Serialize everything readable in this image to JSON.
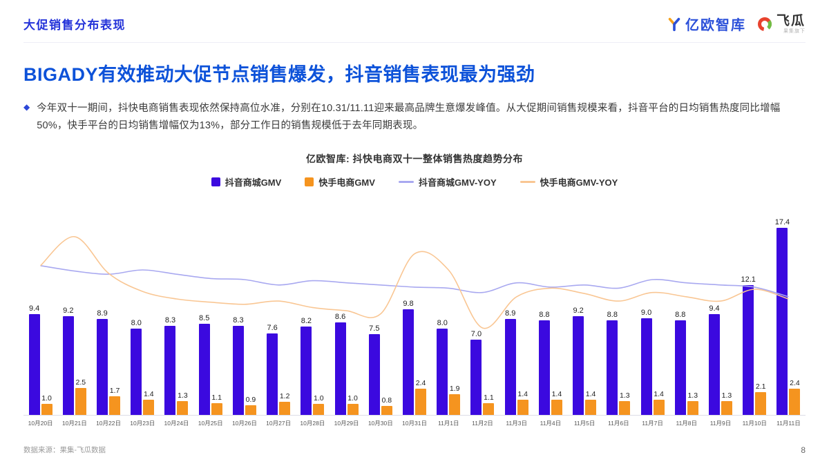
{
  "header": {
    "section_title": "大促销售分布表现",
    "logo_eo": "亿欧智库",
    "logo_feigua": "飞瓜",
    "logo_feigua_sub": "果集旗下"
  },
  "main_title": "BIGADY有效推动大促节点销售爆发，抖音销售表现最为强劲",
  "bullet": {
    "marker": "◆",
    "text": "今年双十一期间，抖快电商销售表现依然保持高位水准，分别在10.31/11.11迎来最高品牌生意爆发峰值。从大促期间销售规模来看，抖音平台的日均销售热度同比增幅50%，快手平台的日均销售增幅仅为13%，部分工作日的销售规模低于去年同期表现。",
    "accent_color": "#2d47d8"
  },
  "chart_data": {
    "type": "bar",
    "title": "亿欧智库: 抖快电商双十一整体销售热度趋势分布",
    "categories": [
      "10月20日",
      "10月21日",
      "10月22日",
      "10月23日",
      "10月24日",
      "10月25日",
      "10月26日",
      "10月27日",
      "10月28日",
      "10月29日",
      "10月30日",
      "10月31日",
      "11月1日",
      "11月2日",
      "11月3日",
      "11月4日",
      "11月5日",
      "11月6日",
      "11月7日",
      "11月8日",
      "11月9日",
      "11月10日",
      "11月11日"
    ],
    "series": [
      {
        "name": "抖音商城GMV",
        "type": "bar",
        "color": "#3b09df",
        "values": [
          9.4,
          9.2,
          8.9,
          8.0,
          8.3,
          8.5,
          8.3,
          7.6,
          8.2,
          8.6,
          7.5,
          9.8,
          8.0,
          7.0,
          8.9,
          8.8,
          9.2,
          8.8,
          9.0,
          8.8,
          9.4,
          12.1,
          17.4
        ]
      },
      {
        "name": "快手电商GMV",
        "type": "bar",
        "color": "#f5941f",
        "values": [
          1.0,
          2.5,
          1.7,
          1.4,
          1.3,
          1.1,
          0.9,
          1.2,
          1.0,
          1.0,
          0.8,
          2.4,
          1.9,
          1.1,
          1.4,
          1.4,
          1.4,
          1.3,
          1.4,
          1.3,
          1.3,
          2.1,
          2.4
        ]
      },
      {
        "name": "抖音商城GMV-YOY",
        "type": "line",
        "color": "#a8a8f0",
        "values": [
          13.9,
          13.4,
          13.1,
          13.5,
          13.1,
          12.7,
          12.6,
          12.1,
          12.5,
          12.3,
          12.1,
          11.9,
          11.8,
          11.4,
          12.3,
          11.9,
          12.1,
          11.8,
          12.6,
          12.3,
          12.1,
          11.9,
          11.0
        ]
      },
      {
        "name": "快手电商GMV-YOY",
        "type": "line",
        "color": "#f9c693",
        "values": [
          13.9,
          16.6,
          13.2,
          11.5,
          10.8,
          10.5,
          10.3,
          10.6,
          10.0,
          9.7,
          9.4,
          15.0,
          13.5,
          8.1,
          11.0,
          11.8,
          11.3,
          10.6,
          11.4,
          11.0,
          10.6,
          11.7,
          10.8
        ]
      }
    ],
    "xlabel": "",
    "ylabel": "",
    "ylim": [
      0,
      18
    ],
    "grid": false,
    "legend_position": "top",
    "bar_labels": true,
    "yoy_scale_note": "YOY lines have no visible axis; values estimated from pixel positions on the bar scale"
  },
  "footer": {
    "source": "数据来源：果集-飞瓜数据",
    "page": "8"
  }
}
